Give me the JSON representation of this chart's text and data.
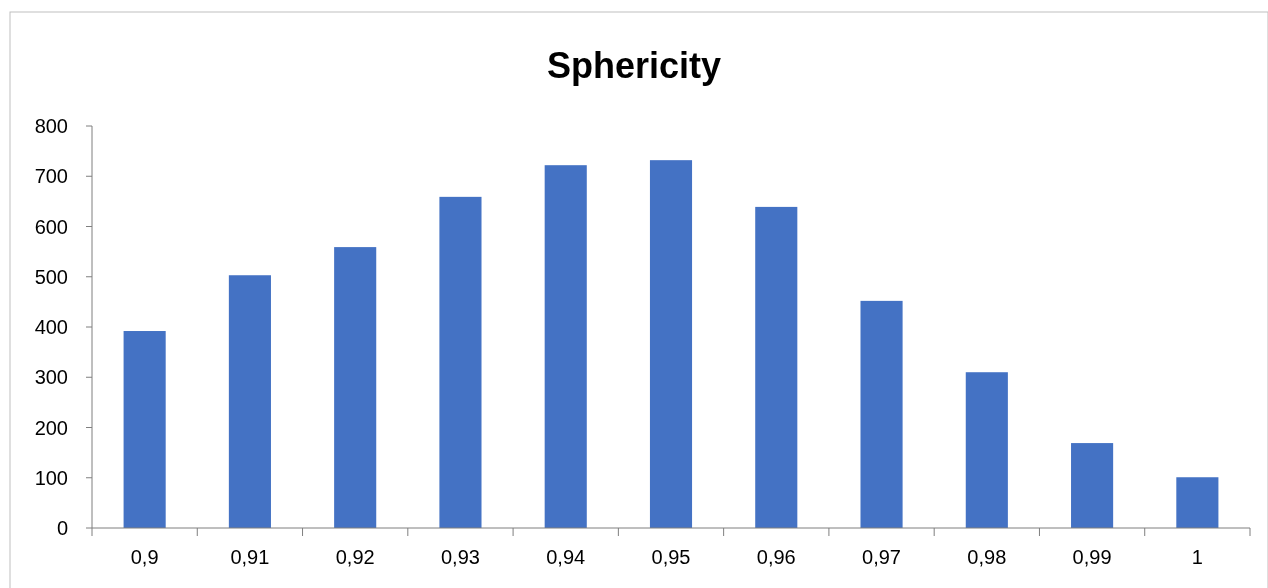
{
  "chart_data": {
    "type": "bar",
    "title": "Sphericity",
    "categories": [
      "0,9",
      "0,91",
      "0,92",
      "0,93",
      "0,94",
      "0,95",
      "0,96",
      "0,97",
      "0,98",
      "0,99",
      "1"
    ],
    "values": [
      392,
      503,
      559,
      659,
      722,
      732,
      639,
      452,
      310,
      169,
      101
    ],
    "color": "#4472c4",
    "ylim": [
      0,
      800
    ],
    "yticks": [
      0,
      100,
      200,
      300,
      400,
      500,
      600,
      700,
      800
    ],
    "grid": false
  }
}
